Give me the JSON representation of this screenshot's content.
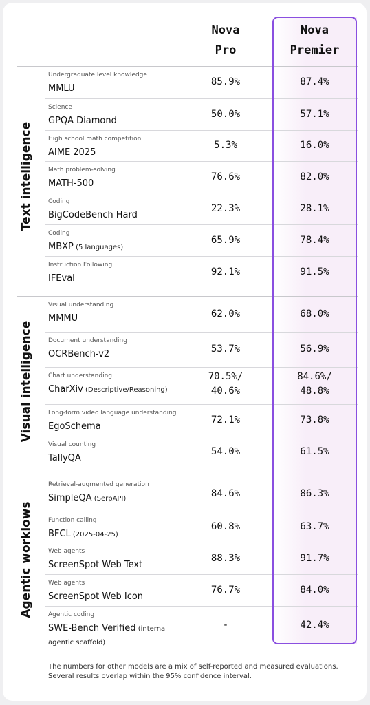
{
  "columns": {
    "pro": [
      "Nova",
      "Pro"
    ],
    "premier": [
      "Nova",
      "Premier"
    ]
  },
  "sections": [
    {
      "label": "Text intelligence"
    },
    {
      "label": "Visual intelligence"
    },
    {
      "label": "Agentic worklows"
    }
  ],
  "rows": [
    {
      "category": "Undergraduate level knowledge",
      "benchmark": "MMLU",
      "sub": "",
      "pro": "85.9%",
      "premier": "87.4%"
    },
    {
      "category": "Science",
      "benchmark": "GPQA Diamond",
      "sub": "",
      "pro": "50.0%",
      "premier": "57.1%"
    },
    {
      "category": "High school math competition",
      "benchmark": "AIME 2025",
      "sub": "",
      "pro": "5.3%",
      "premier": "16.0%"
    },
    {
      "category": "Math problem-solving",
      "benchmark": "MATH-500",
      "sub": "",
      "pro": "76.6%",
      "premier": "82.0%"
    },
    {
      "category": "Coding",
      "benchmark": "BigCodeBench Hard",
      "sub": "",
      "pro": "22.3%",
      "premier": "28.1%"
    },
    {
      "category": "Coding",
      "benchmark": "MBXP",
      "sub": "(5 languages)",
      "pro": "65.9%",
      "premier": "78.4%"
    },
    {
      "category": "Instruction Following",
      "benchmark": "IFEval",
      "sub": "",
      "pro": "92.1%",
      "premier": "91.5%"
    },
    {
      "category": "Visual understanding",
      "benchmark": "MMMU",
      "sub": "",
      "pro": "62.0%",
      "premier": "68.0%"
    },
    {
      "category": "Document understanding",
      "benchmark": "OCRBench-v2",
      "sub": "",
      "pro": "53.7%",
      "premier": "56.9%"
    },
    {
      "category": "Chart understanding",
      "benchmark": "CharXiv",
      "sub": "(Descriptive/Reasoning)",
      "pro": "70.5%/\n40.6%",
      "premier": "84.6%/\n48.8%"
    },
    {
      "category": "Long-form video language understanding",
      "benchmark": "EgoSchema",
      "sub": "",
      "pro": "72.1%",
      "premier": "73.8%"
    },
    {
      "category": "Visual counting",
      "benchmark": "TallyQA",
      "sub": "",
      "pro": "54.0%",
      "premier": "61.5%"
    },
    {
      "category": "Retrieval-augmented generation",
      "benchmark": "SimpleQA",
      "sub": "(SerpAPI)",
      "pro": "84.6%",
      "premier": "86.3%"
    },
    {
      "category": "Function calling",
      "benchmark": "BFCL",
      "sub": "(2025-04-25)",
      "pro": "60.8%",
      "premier": "63.7%"
    },
    {
      "category": "Web agents",
      "benchmark": "ScreenSpot Web Text",
      "sub": "",
      "pro": "88.3%",
      "premier": "91.7%"
    },
    {
      "category": "Web agents",
      "benchmark": "ScreenSpot Web Icon",
      "sub": "",
      "pro": "76.7%",
      "premier": "84.0%"
    },
    {
      "category": "Agentic coding",
      "benchmark": "SWE-Bench Verified",
      "sub": "(internal",
      "sub2": "agentic scaffold)",
      "pro": "-",
      "premier": "42.4%"
    }
  ],
  "footnote": "The numbers for other models are a mix of self-reported and measured evaluations. Several results overlap within the 95% confidence interval."
}
